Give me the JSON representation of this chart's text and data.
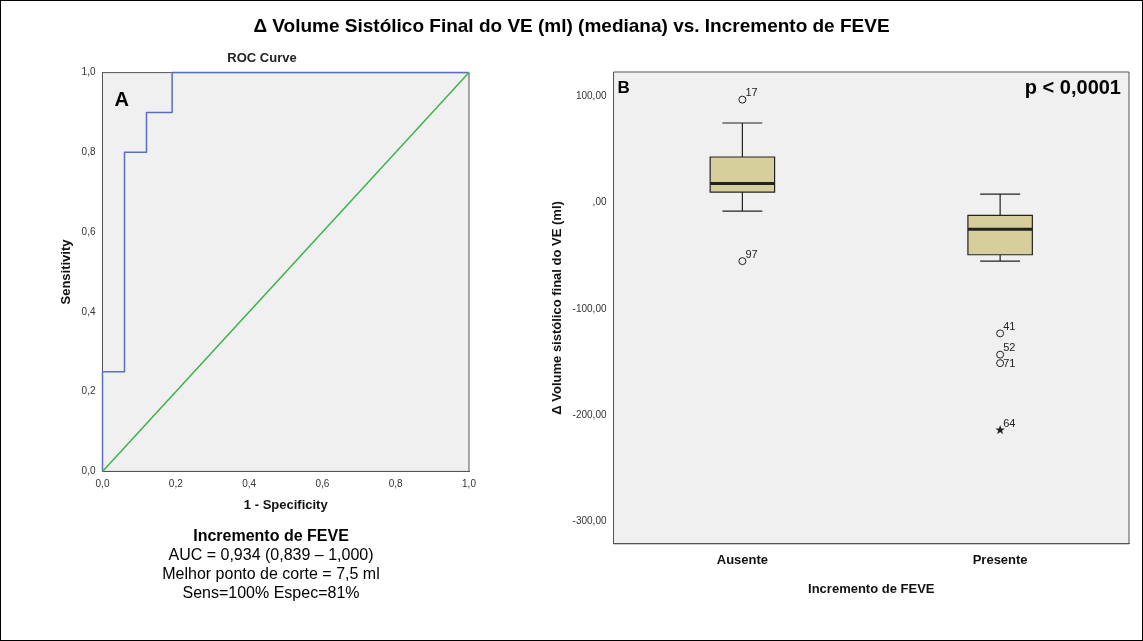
{
  "chart_data": [
    {
      "type": "line",
      "title": "Δ Volume Sistólico Final do VE (ml) (mediana) vs. Incremento de FEVE",
      "subtitle": "ROC Curve",
      "xlabel": "1 - Specificity",
      "ylabel": "Sensitivity",
      "series": [
        {
          "color": "#5a6ebe",
          "x": [
            0,
            0,
            0.06,
            0.06,
            0.12,
            0.12,
            0.19,
            0.19,
            1
          ],
          "values": [
            0,
            0.25,
            0.25,
            0.8,
            0.8,
            0.9,
            0.9,
            1,
            1
          ]
        },
        {
          "color": "#3cb44b",
          "x": [
            0,
            1
          ],
          "values": [
            0,
            1
          ]
        }
      ],
      "xlim": [
        0,
        1
      ],
      "ylim": [
        0,
        1
      ],
      "xticks": [
        {
          "value": 0,
          "label": "0,0"
        },
        {
          "value": 0.2,
          "label": "0,2"
        },
        {
          "value": 0.4,
          "label": "0,4"
        },
        {
          "value": 0.6,
          "label": "0,6"
        },
        {
          "value": 0.8,
          "label": "0,8"
        },
        {
          "value": 1,
          "label": "1,0"
        }
      ],
      "yticks": [
        {
          "value": 0,
          "label": "0,0"
        },
        {
          "value": 0.2,
          "label": "0,2"
        },
        {
          "value": 0.4,
          "label": "0,4"
        },
        {
          "value": 0.6,
          "label": "0,6"
        },
        {
          "value": 0.8,
          "label": "0,8"
        },
        {
          "value": 1,
          "label": "1,0"
        }
      ],
      "annotations": [
        "A",
        "Incremento de FEVE",
        "AUC = 0,934 (0,839 – 1,000)",
        "Melhor ponto de corte = 7,5 ml",
        "Sens=100%   Espec=81%"
      ]
    },
    {
      "type": "box",
      "xlabel": "Incremento de FEVE",
      "ylabel": "Δ Volume sistólico final do VE (ml)",
      "categories": [
        "Ausente",
        "Presente"
      ],
      "color": "#d6cf9c",
      "boxes": [
        {
          "low": -8,
          "q1": 10,
          "median": 18,
          "q3": 43,
          "high": 75,
          "outliers": [
            97,
            -55
          ]
        },
        {
          "low": -55,
          "q1": -49,
          "median": -25,
          "q3": -12,
          "high": 8,
          "outliers": [
            -123,
            -143,
            -151,
            -214
          ]
        }
      ],
      "ylim": [
        -321,
        123
      ],
      "yticks": [
        {
          "value": -300,
          "label": "-300,00"
        },
        {
          "value": -200,
          "label": "-200,00"
        },
        {
          "value": -100,
          "label": "-100,00"
        },
        {
          "value": 0,
          "label": ",00"
        },
        {
          "value": 100,
          "label": "100,00"
        }
      ],
      "annotations": [
        "B",
        "p < 0,0001",
        "17",
        "97",
        "41",
        "52",
        "71",
        "64"
      ]
    }
  ]
}
